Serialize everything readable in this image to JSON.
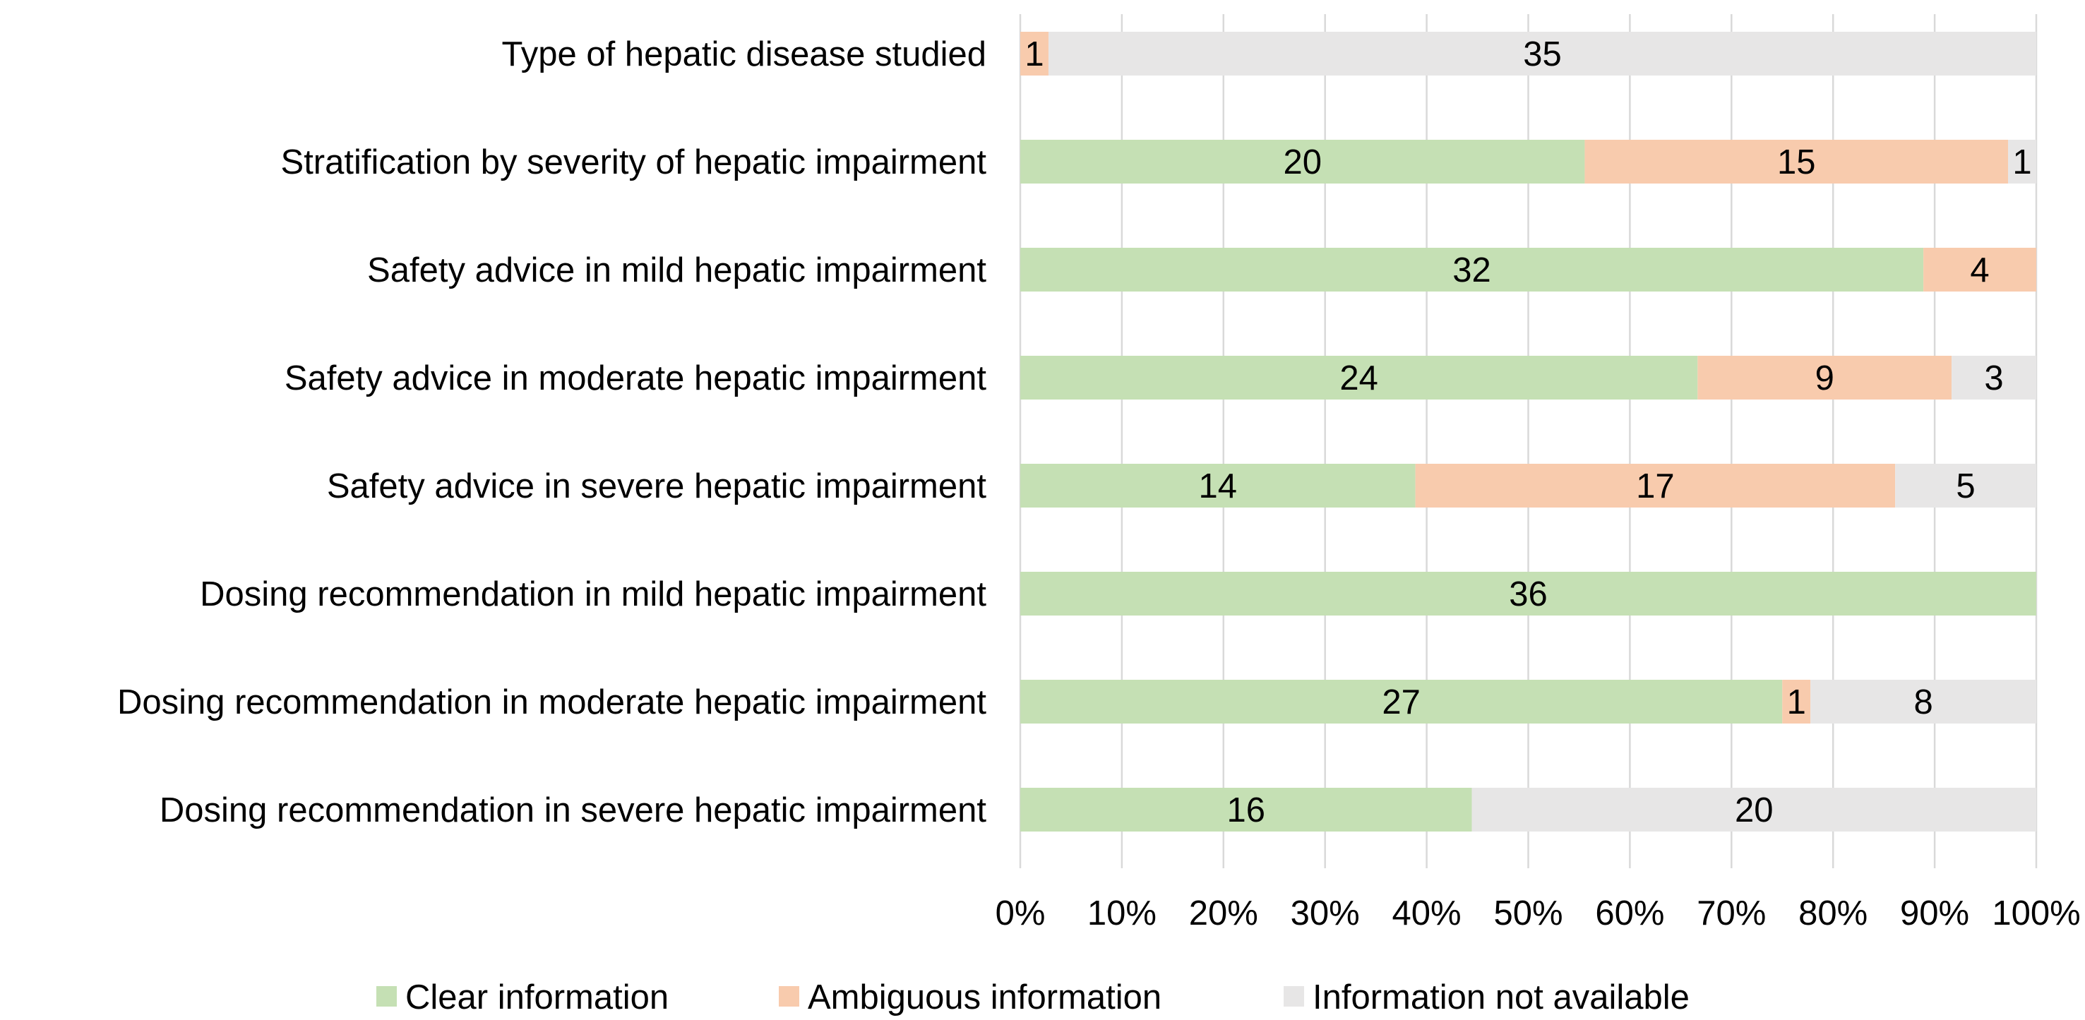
{
  "chart_data": {
    "type": "bar",
    "orientation": "horizontal",
    "stacked": "percent",
    "title": "",
    "xlabel": "",
    "ylabel": "",
    "xlim": [
      0,
      100
    ],
    "x_ticks": [
      "0%",
      "10%",
      "20%",
      "30%",
      "40%",
      "50%",
      "60%",
      "70%",
      "80%",
      "90%",
      "100%"
    ],
    "grid": true,
    "legend_position": "bottom",
    "categories": [
      "Type of hepatic disease studied",
      "Stratification by severity of hepatic impairment",
      "Safety advice in mild hepatic impairment",
      "Safety advice in moderate hepatic impairment",
      "Safety advice in severe hepatic impairment",
      "Dosing recommendation in mild hepatic impairment",
      "Dosing recommendation in moderate hepatic impairment",
      "Dosing recommendation in severe hepatic impairment"
    ],
    "series": [
      {
        "name": "Clear information",
        "color": "#c5e0b4",
        "values": [
          0,
          20,
          32,
          24,
          14,
          36,
          27,
          16
        ]
      },
      {
        "name": "Ambiguous information",
        "color": "#f8cbad",
        "values": [
          1,
          15,
          4,
          9,
          17,
          0,
          1,
          0
        ]
      },
      {
        "name": "Information not available",
        "color": "#e7e6e6",
        "values": [
          35,
          1,
          0,
          3,
          5,
          0,
          8,
          20
        ]
      }
    ],
    "gridline_color": "#d9d9d9"
  }
}
